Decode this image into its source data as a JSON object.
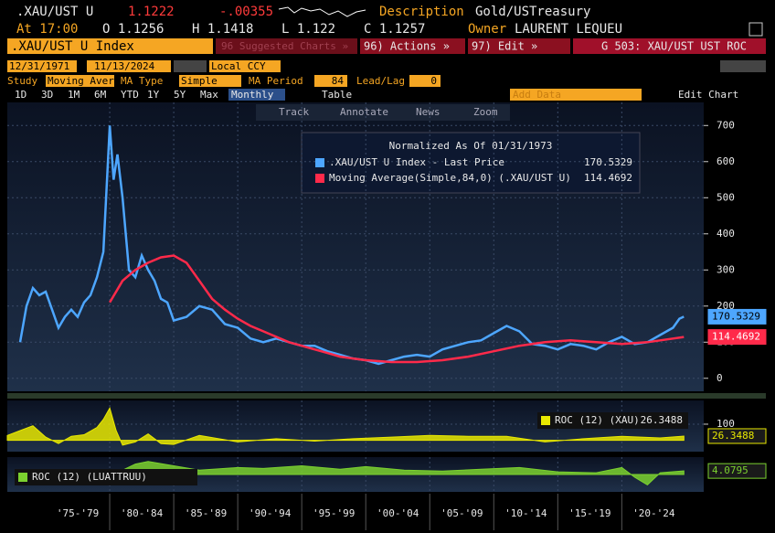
{
  "header": {
    "ticker": ".XAU/UST U",
    "price": "1.1222",
    "change": "-.00355",
    "description_label": "Description",
    "description": "Gold/USTreasury",
    "time": "At 17:00",
    "open": "O 1.1256",
    "high": "H 1.1418",
    "low": "L 1.122",
    "close": "C 1.1257",
    "owner_label": "Owner",
    "owner": "LAURENT LEQUEU"
  },
  "toolbar": {
    "security": ".XAU/UST U Index",
    "suggested": "96 Suggested Charts »",
    "actions": "96) Actions »",
    "edit": "97) Edit »",
    "chart_name": "G 503: XAU/UST UST ROC",
    "start_date": "12/31/1971",
    "end_date": "11/13/2024",
    "currency": "Local CCY",
    "study_label": "Study",
    "study": "Moving Aver",
    "ma_type_label": "MA Type",
    "ma_type": "Simple",
    "ma_period_label": "MA Period",
    "ma_period": "84",
    "lead_lag_label": "Lead/Lag",
    "lead_lag": "0",
    "ranges": [
      "1D",
      "3D",
      "1M",
      "6M",
      "YTD",
      "1Y",
      "5Y",
      "Max"
    ],
    "frequency": "Monthly",
    "table": "Table",
    "add_data": "Add Data",
    "edit_chart": "Edit Chart",
    "tools": [
      "Track",
      "Annotate",
      "News",
      "Zoom"
    ]
  },
  "chart_data": [
    {
      "type": "line",
      "legend_title": "Normalized As Of 01/31/1973",
      "xlim": [
        1972,
        2026.4
      ],
      "ylim": [
        -36,
        764
      ],
      "yticks": [
        0,
        100,
        200,
        300,
        400,
        500,
        600,
        700
      ],
      "xticks": [
        {
          "value": 1977.5,
          "label": "'75-'79"
        },
        {
          "value": 1982.5,
          "label": "'80-'84"
        },
        {
          "value": 1987.5,
          "label": "'85-'89"
        },
        {
          "value": 1992.5,
          "label": "'90-'94"
        },
        {
          "value": 1997.5,
          "label": "'95-'99"
        },
        {
          "value": 2002.5,
          "label": "'00-'04"
        },
        {
          "value": 2007.5,
          "label": "'05-'09"
        },
        {
          "value": 2012.5,
          "label": "'10-'14"
        },
        {
          "value": 2017.5,
          "label": "'15-'19"
        },
        {
          "value": 2022.5,
          "label": "'20-'24"
        }
      ],
      "series": [
        {
          "name": ".XAU/UST U Index - Last Price",
          "color": "#4da6ff",
          "last": 170.5329,
          "x": [
            1973,
            1973.5,
            1974,
            1974.5,
            1975,
            1975.5,
            1976,
            1976.5,
            1977,
            1977.5,
            1978,
            1978.5,
            1979,
            1979.5,
            1980,
            1980.3,
            1980.6,
            1981,
            1981.5,
            1982,
            1982.5,
            1983,
            1983.5,
            1984,
            1984.5,
            1985,
            1986,
            1987,
            1988,
            1989,
            1990,
            1991,
            1992,
            1993,
            1994,
            1995,
            1996,
            1997,
            1998,
            1999,
            2000,
            2001,
            2002,
            2003,
            2004,
            2005,
            2006,
            2007,
            2008,
            2009,
            2010,
            2011,
            2012,
            2013,
            2014,
            2015,
            2016,
            2017,
            2018,
            2019,
            2020,
            2021,
            2022,
            2023,
            2024,
            2024.5,
            2024.85
          ],
          "values": [
            100,
            200,
            250,
            230,
            240,
            190,
            140,
            170,
            190,
            170,
            210,
            230,
            280,
            350,
            700,
            550,
            620,
            500,
            300,
            280,
            340,
            300,
            270,
            220,
            210,
            160,
            170,
            200,
            190,
            150,
            140,
            110,
            100,
            110,
            100,
            90,
            90,
            75,
            65,
            55,
            50,
            40,
            50,
            60,
            65,
            60,
            80,
            90,
            100,
            105,
            125,
            145,
            130,
            95,
            90,
            80,
            95,
            90,
            80,
            100,
            115,
            95,
            100,
            120,
            140,
            165,
            170.5329
          ]
        },
        {
          "name": "Moving Average(Simple,84,0) (.XAU/UST U)",
          "color": "#ff2a4a",
          "last": 114.4692,
          "x": [
            1980,
            1981,
            1982,
            1983,
            1984,
            1985,
            1986,
            1987,
            1988,
            1989,
            1990,
            1991,
            1992,
            1993,
            1994,
            1995,
            1996,
            1997,
            1998,
            1999,
            2000,
            2002,
            2004,
            2006,
            2008,
            2010,
            2012,
            2014,
            2016,
            2018,
            2020,
            2022,
            2024,
            2024.85
          ],
          "values": [
            210,
            270,
            300,
            320,
            335,
            340,
            320,
            270,
            220,
            190,
            165,
            145,
            130,
            115,
            100,
            90,
            80,
            70,
            60,
            55,
            50,
            45,
            45,
            50,
            60,
            75,
            90,
            100,
            105,
            100,
            95,
            100,
            110,
            114.4692
          ]
        }
      ]
    },
    {
      "type": "area",
      "xlim": [
        1972,
        2026.4
      ],
      "ylim": [
        -70,
        247
      ],
      "yticks": [
        100
      ],
      "series": [
        {
          "name": "ROC (12) (XAU)",
          "color": "#e8e800",
          "last": 26.3488,
          "x": [
            1972,
            1973,
            1974,
            1975,
            1976,
            1977,
            1978,
            1979,
            1979.5,
            1980,
            1980.5,
            1981,
            1982,
            1983,
            1984,
            1985,
            1987,
            1990,
            1993,
            1996,
            1999,
            2002,
            2005,
            2008,
            2011,
            2014,
            2017,
            2020,
            2023,
            2024.85
          ],
          "values": [
            30,
            60,
            90,
            20,
            -20,
            25,
            35,
            80,
            130,
            200,
            60,
            -30,
            -10,
            40,
            -20,
            -25,
            30,
            -10,
            10,
            -5,
            10,
            20,
            30,
            25,
            25,
            -10,
            10,
            25,
            15,
            26.3488
          ]
        }
      ]
    },
    {
      "type": "area",
      "xlim": [
        1972,
        2026.4
      ],
      "ylim": [
        -20,
        20
      ],
      "yticks": [],
      "series": [
        {
          "name": "ROC (12) (LUATTRUU)",
          "color": "#7bd12f",
          "last": 4.0795,
          "x": [
            1977,
            1979,
            1980,
            1982,
            1983,
            1985,
            1987,
            1990,
            1992,
            1995,
            1998,
            2000,
            2003,
            2006,
            2009,
            2012,
            2015,
            2018,
            2020,
            2021,
            2022,
            2023,
            2024.85
          ],
          "values": [
            3,
            2,
            -2,
            12,
            15,
            10,
            5,
            8,
            7,
            10,
            6,
            9,
            5,
            4,
            6,
            8,
            3,
            2,
            8,
            -3,
            -12,
            2,
            4.0795
          ]
        }
      ]
    }
  ]
}
